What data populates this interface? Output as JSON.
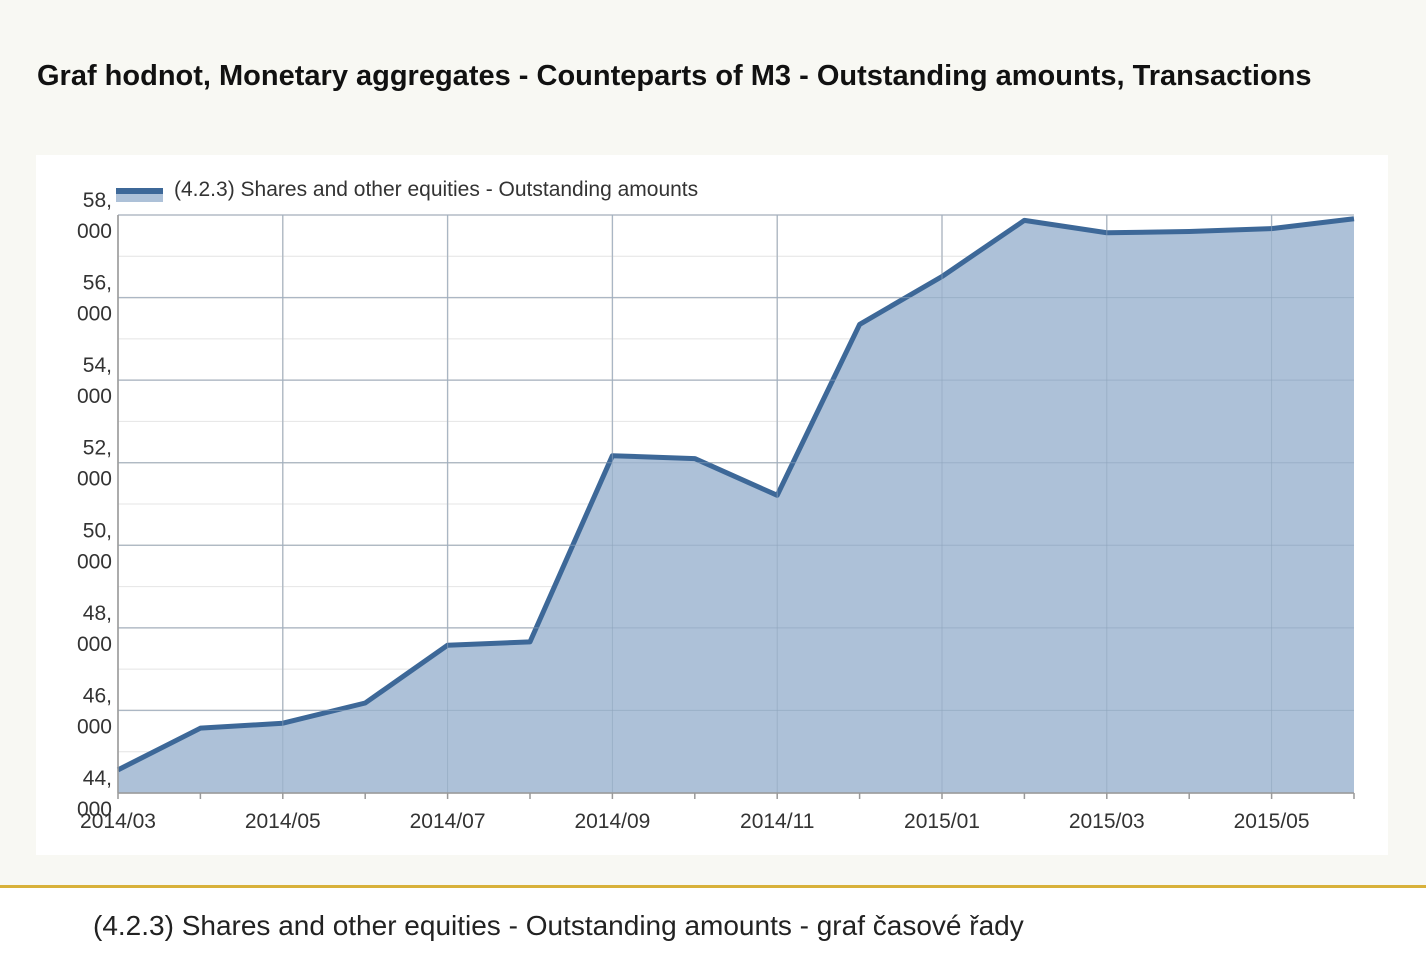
{
  "page": {
    "title": "Graf hodnot, Monetary aggregates - Counteparts of M3 - Outstanding amounts, Transactions",
    "caption": "(4.2.3) Shares and other equities - Outstanding amounts - graf časové řady"
  },
  "colors": {
    "line": "#3d6898",
    "area": "#adc1d8",
    "accent": "#d8b13a"
  },
  "chart_data": {
    "type": "area",
    "title": "",
    "xlabel": "",
    "ylabel": "",
    "ylim": [
      44000,
      58000
    ],
    "yticks": [
      {
        "value": 58000,
        "label": [
          "58,",
          "000"
        ]
      },
      {
        "value": 56000,
        "label": [
          "56,",
          "000"
        ]
      },
      {
        "value": 54000,
        "label": [
          "54,",
          "000"
        ]
      },
      {
        "value": 52000,
        "label": [
          "52,",
          "000"
        ]
      },
      {
        "value": 50000,
        "label": [
          "50,",
          "000"
        ]
      },
      {
        "value": 48000,
        "label": [
          "48,",
          "000"
        ]
      },
      {
        "value": 46000,
        "label": [
          "46,",
          "000"
        ]
      },
      {
        "value": 44000,
        "label": [
          "44,",
          "000"
        ]
      }
    ],
    "x": [
      "2014/03",
      "2014/04",
      "2014/05",
      "2014/06",
      "2014/07",
      "2014/08",
      "2014/09",
      "2014/10",
      "2014/11",
      "2014/12",
      "2015/01",
      "2015/02",
      "2015/03",
      "2015/04",
      "2015/05",
      "2015/06"
    ],
    "xtick_labels": [
      "2014/03",
      "2014/05",
      "2014/07",
      "2014/09",
      "2014/11",
      "2015/01",
      "2015/03",
      "2015/05"
    ],
    "legend_position": "top-left",
    "grid": true,
    "series": [
      {
        "name": "(4.2.3) Shares and other equities - Outstanding amounts",
        "values": [
          44560,
          45570,
          45690,
          46180,
          47580,
          47660,
          52170,
          52100,
          51210,
          55350,
          56510,
          57870,
          57570,
          57600,
          57670,
          57910
        ]
      }
    ]
  }
}
